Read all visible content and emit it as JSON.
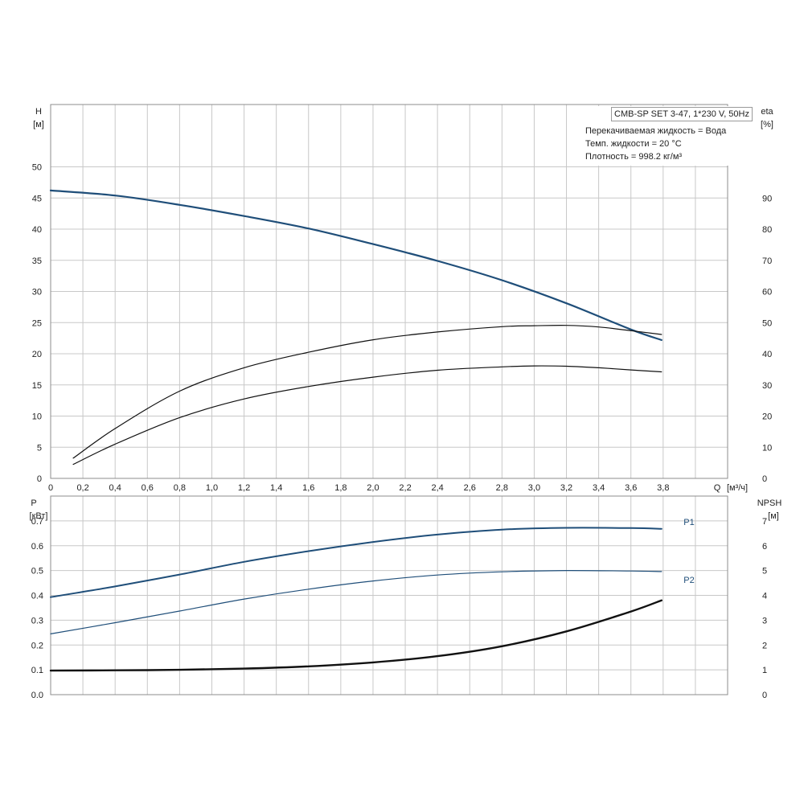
{
  "info": {
    "model": "CMB-SP SET 3-47, 1*230 V, 50Hz",
    "liquid": "Перекачиваемая жидкость = Вода",
    "temperature": "Темп. жидкости = 20 °C",
    "density": "Плотность = 998.2 кг/м³"
  },
  "chart_data": [
    {
      "type": "line",
      "title": "",
      "x": {
        "label": "Q",
        "unit": "[м³/ч]",
        "range": [
          0,
          4.2
        ],
        "ticks": [
          0,
          0.2,
          0.4,
          0.6,
          0.8,
          1.0,
          1.2,
          1.4,
          1.6,
          1.8,
          2.0,
          2.2,
          2.4,
          2.6,
          2.8,
          3.0,
          3.2,
          3.4,
          3.6,
          3.8
        ],
        "tick_labels": [
          "0",
          "0,2",
          "0,4",
          "0,6",
          "0,8",
          "1,0",
          "1,2",
          "1,4",
          "1,6",
          "1,8",
          "2,0",
          "2,2",
          "2,4",
          "2,6",
          "2,8",
          "3,0",
          "3,2",
          "3,4",
          "3,6",
          "3,8"
        ]
      },
      "y_left": {
        "label": "H",
        "unit": "[м]",
        "range": [
          0,
          60
        ],
        "ticks": [
          0,
          5,
          10,
          15,
          20,
          25,
          30,
          35,
          40,
          45,
          50
        ],
        "tick_labels": [
          "0",
          "5",
          "10",
          "15",
          "20",
          "25",
          "30",
          "35",
          "40",
          "45",
          "50"
        ]
      },
      "y_right": {
        "label": "eta",
        "unit": "[%]",
        "range": [
          0,
          120
        ],
        "ticks": [
          0,
          10,
          20,
          30,
          40,
          50,
          60,
          70,
          80,
          90
        ],
        "tick_labels": [
          "0",
          "10",
          "20",
          "30",
          "40",
          "50",
          "60",
          "70",
          "80",
          "90"
        ]
      },
      "grid": true,
      "series": [
        {
          "name": "H",
          "axis": "left",
          "color": "#1f4e79",
          "x": [
            0,
            0.4,
            0.8,
            1.2,
            1.6,
            2.0,
            2.4,
            2.8,
            3.2,
            3.6,
            3.79
          ],
          "y": [
            46.2,
            45.4,
            43.9,
            42.1,
            40.1,
            37.6,
            34.9,
            31.8,
            28.1,
            23.9,
            22.2
          ]
        },
        {
          "name": "eta",
          "axis": "right",
          "color": "#111111",
          "x": [
            0.14,
            0.4,
            0.8,
            1.2,
            1.6,
            2.0,
            2.4,
            2.8,
            3.0,
            3.2,
            3.4,
            3.6,
            3.79
          ],
          "y": [
            4.5,
            11.0,
            19.5,
            25.5,
            29.5,
            32.5,
            34.7,
            35.8,
            36.1,
            36.0,
            35.5,
            34.8,
            34.2
          ]
        },
        {
          "name": "",
          "axis": "right",
          "color": "#111111",
          "x": [
            0.14,
            0.4,
            0.8,
            1.2,
            1.6,
            2.0,
            2.4,
            2.8,
            3.0,
            3.2,
            3.4,
            3.6,
            3.79
          ],
          "y": [
            6.5,
            16.0,
            28.0,
            35.5,
            40.5,
            44.5,
            47.0,
            48.7,
            49.0,
            49.1,
            48.6,
            47.4,
            46.2
          ]
        }
      ]
    },
    {
      "type": "line",
      "title": "",
      "y_left": {
        "label": "P",
        "unit": "[кВт]",
        "range": [
          0,
          0.8
        ],
        "ticks": [
          0,
          0.1,
          0.2,
          0.3,
          0.4,
          0.5,
          0.6,
          0.7
        ],
        "tick_labels": [
          "0.0",
          "0.1",
          "0.2",
          "0.3",
          "0.4",
          "0.5",
          "0.6",
          "0.7"
        ]
      },
      "y_right": {
        "label": "NPSH",
        "unit": "[м]",
        "range": [
          0,
          8
        ],
        "ticks": [
          0,
          1,
          2,
          3,
          4,
          5,
          6,
          7
        ],
        "tick_labels": [
          "0",
          "1",
          "2",
          "3",
          "4",
          "5",
          "6",
          "7"
        ]
      },
      "grid": true,
      "series": [
        {
          "name": "P1",
          "axis": "left",
          "color": "#1f4e79",
          "x": [
            0,
            0.4,
            0.8,
            1.2,
            1.6,
            2.0,
            2.4,
            2.8,
            3.2,
            3.6,
            3.79
          ],
          "y": [
            0.393,
            0.436,
            0.484,
            0.535,
            0.578,
            0.615,
            0.645,
            0.665,
            0.672,
            0.671,
            0.668
          ]
        },
        {
          "name": "P2",
          "axis": "left",
          "color": "#1f4e79",
          "x": [
            0,
            0.4,
            0.8,
            1.2,
            1.6,
            2.0,
            2.4,
            2.8,
            3.2,
            3.6,
            3.79
          ],
          "y": [
            0.245,
            0.29,
            0.337,
            0.385,
            0.425,
            0.458,
            0.482,
            0.495,
            0.5,
            0.498,
            0.496
          ]
        },
        {
          "name": "NPSH",
          "axis": "right",
          "color": "#111111",
          "x": [
            0,
            0.4,
            0.8,
            1.2,
            1.6,
            2.0,
            2.4,
            2.8,
            3.2,
            3.6,
            3.79
          ],
          "y": [
            0.97,
            0.98,
            1.0,
            1.05,
            1.14,
            1.3,
            1.55,
            1.95,
            2.55,
            3.35,
            3.8
          ]
        }
      ]
    }
  ]
}
